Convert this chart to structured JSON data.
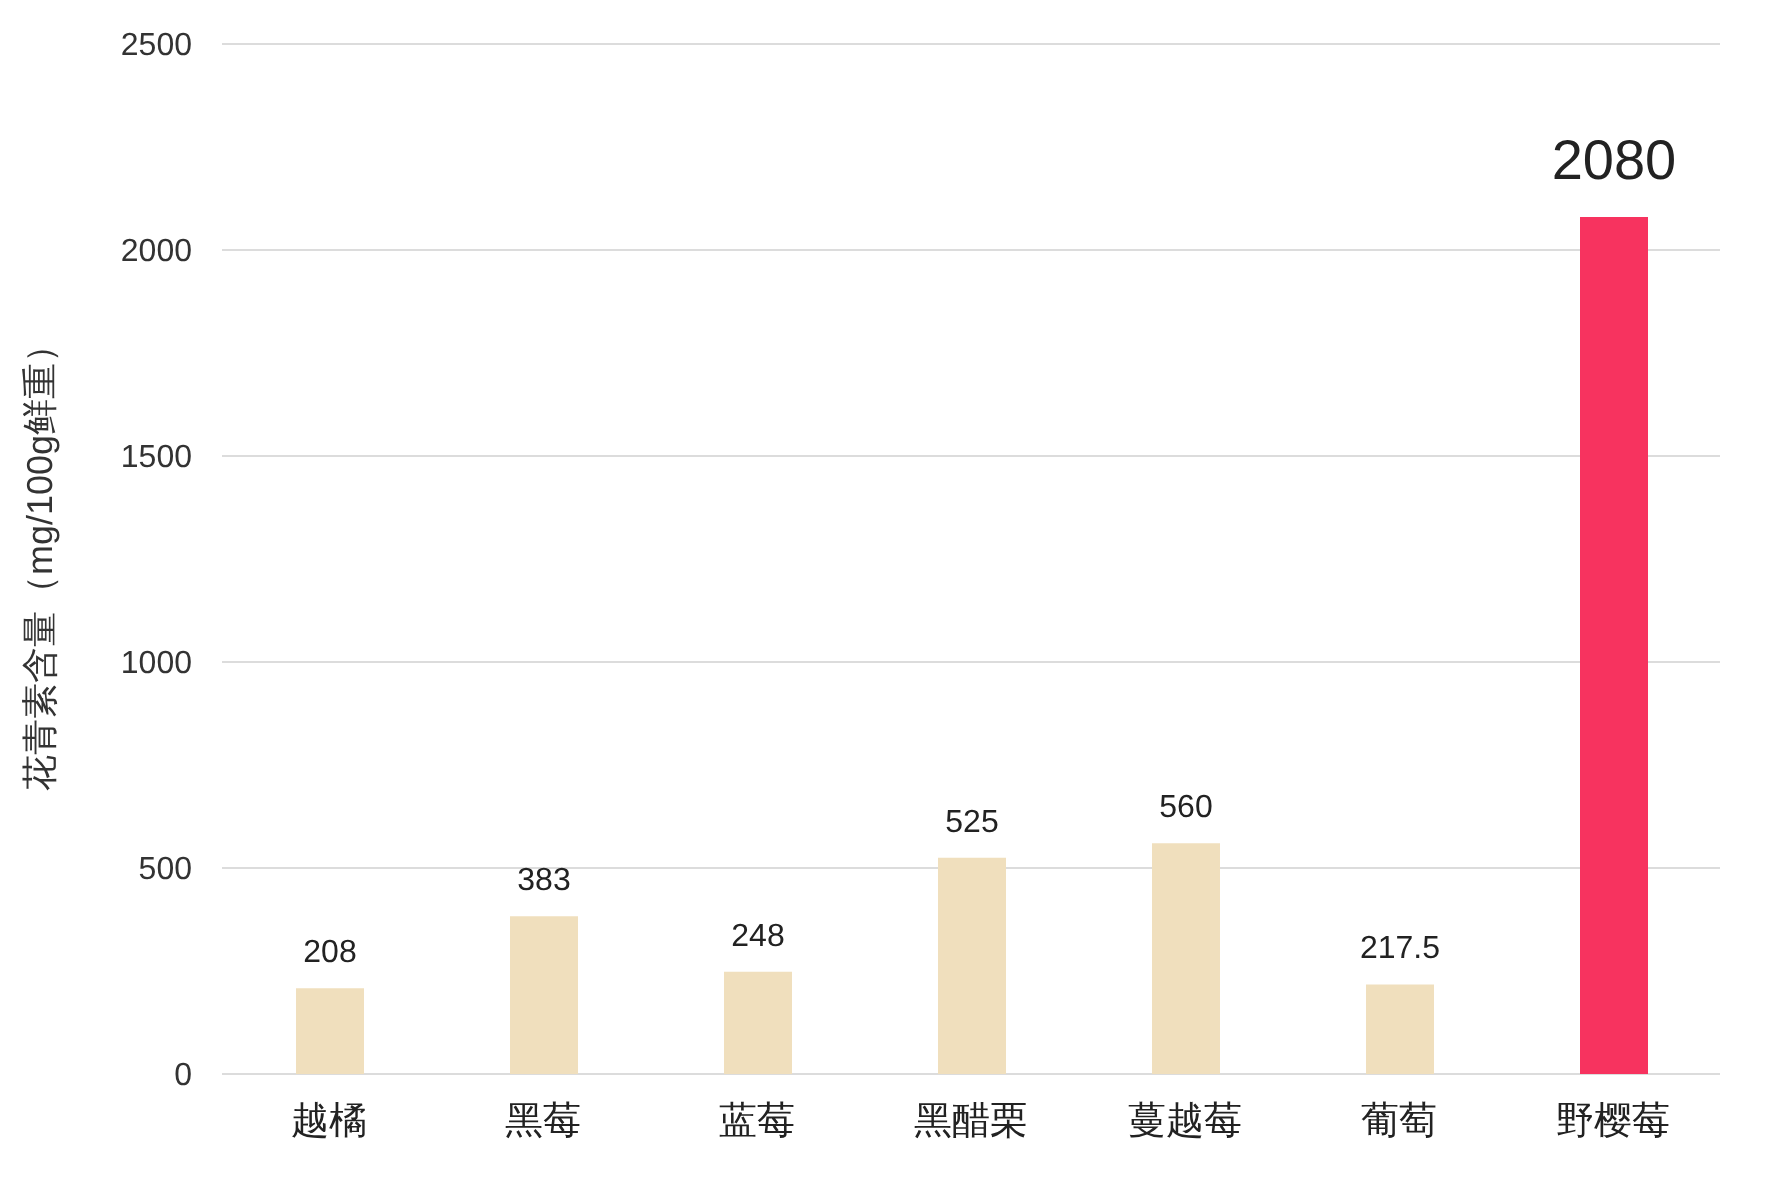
{
  "chart_data": {
    "type": "bar",
    "ylabel": "花青素含量（mg/100g鲜重）",
    "categories": [
      "越橘",
      "黑莓",
      "蓝莓",
      "黑醋栗",
      "蔓越莓",
      "葡萄",
      "野樱莓"
    ],
    "values": [
      208,
      383,
      248,
      525,
      560,
      217.5,
      2080
    ],
    "colors": [
      "#f0dfbd",
      "#f0dfbd",
      "#f0dfbd",
      "#f0dfbd",
      "#f0dfbd",
      "#f0dfbd",
      "#f7335f"
    ],
    "ylim": [
      0,
      2500
    ],
    "yticks": [
      0,
      500,
      1000,
      1500,
      2000,
      2500
    ],
    "grid": "y",
    "data_labels": true
  }
}
